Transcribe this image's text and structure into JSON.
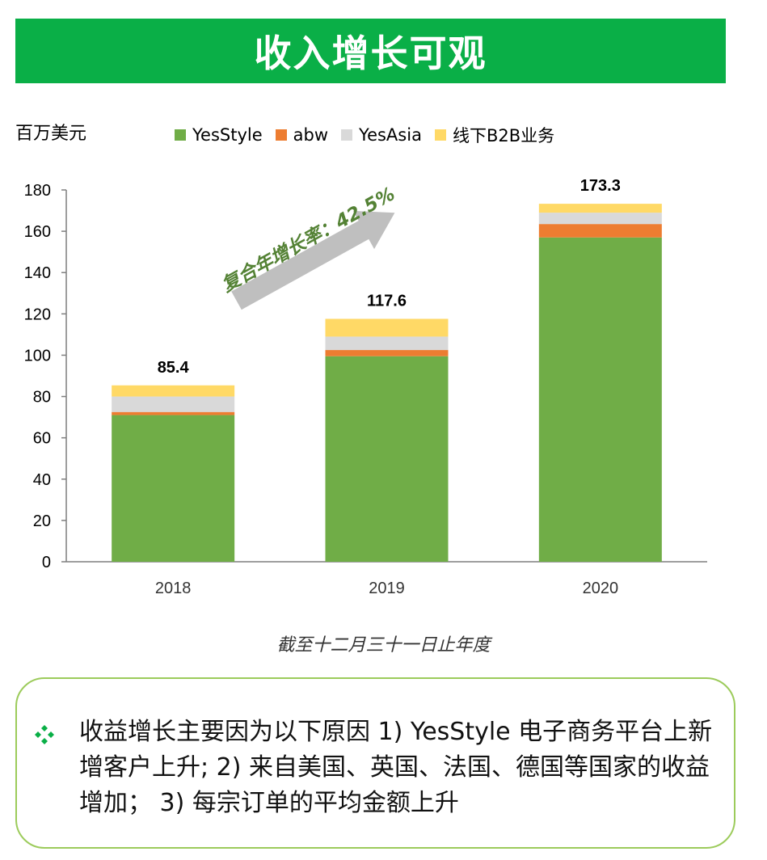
{
  "header": {
    "title": "收入增长可观"
  },
  "chart_data": {
    "type": "bar",
    "stacked": true,
    "unit_label": "百万美元",
    "categories": [
      "2018",
      "2019",
      "2020"
    ],
    "series": [
      {
        "name": "YesStyle",
        "color": "#70ad47",
        "values": [
          71,
          99.5,
          157
        ]
      },
      {
        "name": "abw",
        "color": "#ed7d31",
        "values": [
          1.5,
          3,
          6.5
        ]
      },
      {
        "name": "YesAsia",
        "color": "#d9d9d9",
        "values": [
          7.5,
          6.5,
          5.5
        ]
      },
      {
        "name": "线下B2B业务",
        "color": "#ffd966",
        "values": [
          5.4,
          8.6,
          4.3
        ]
      }
    ],
    "totals": [
      "85.4",
      "117.6",
      "173.3"
    ],
    "ylim": [
      0,
      180
    ],
    "yticks": [
      "0",
      "20",
      "40",
      "60",
      "80",
      "100",
      "120",
      "140",
      "160",
      "180"
    ],
    "grid": false,
    "legend_position": "top",
    "annotation": "复合年增长率：42.5%"
  },
  "footnote": "截至十二月三十一日止年度",
  "notes": {
    "bullet_icon": "diamond-bullet-icon",
    "text": "收益增长主要因为以下原因 1) YesStyle 电子商务平台上新增客户上升; 2) 来自美国、英国、法国、德国等国家的收益增加； 3) 每宗订单的平均金额上升"
  }
}
